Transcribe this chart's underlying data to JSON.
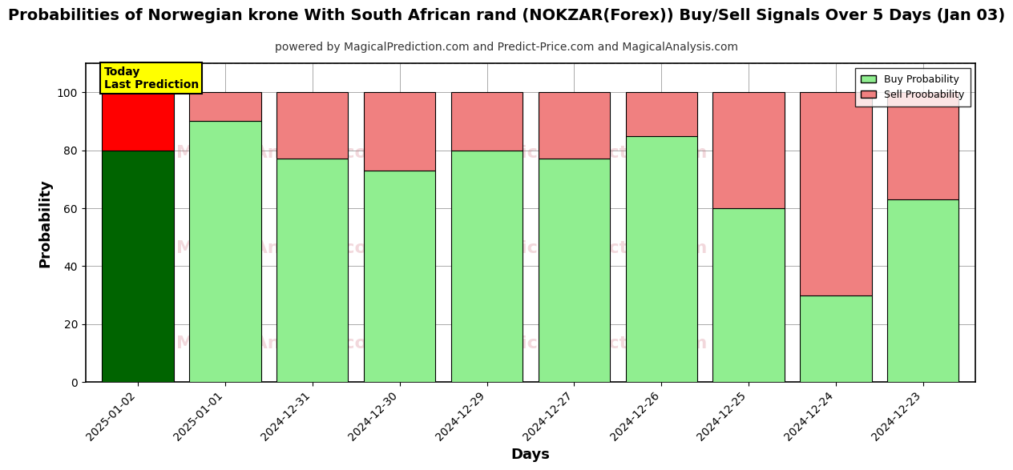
{
  "title": "Probabilities of Norwegian krone With South African rand (NOKZAR(Forex)) Buy/Sell Signals Over 5 Days (Jan 03)",
  "subtitle": "powered by MagicalPrediction.com and Predict-Price.com and MagicalAnalysis.com",
  "xlabel": "Days",
  "ylabel": "Probability",
  "categories": [
    "2025-01-02",
    "2025-01-01",
    "2024-12-31",
    "2024-12-30",
    "2024-12-29",
    "2024-12-27",
    "2024-12-26",
    "2024-12-25",
    "2024-12-24",
    "2024-12-23"
  ],
  "buy_values": [
    80,
    90,
    77,
    73,
    80,
    77,
    85,
    60,
    30,
    63
  ],
  "sell_values": [
    20,
    10,
    23,
    27,
    20,
    23,
    15,
    40,
    70,
    37
  ],
  "today_index": 0,
  "buy_color_today": "#006400",
  "sell_color_today": "#FF0000",
  "buy_color_normal": "#90EE90",
  "sell_color_normal": "#F08080",
  "bar_edge_color": "#000000",
  "ylim": [
    0,
    110
  ],
  "yticks": [
    0,
    20,
    40,
    60,
    80,
    100
  ],
  "dashed_line_y": 110,
  "legend_buy_label": "Buy Probability",
  "legend_sell_label": "Sell Proobability",
  "today_label_line1": "Today",
  "today_label_line2": "Last Prediction",
  "today_box_color": "#FFFF00",
  "title_fontsize": 14,
  "subtitle_fontsize": 10,
  "axis_label_fontsize": 13,
  "tick_fontsize": 10,
  "background_color": "#FFFFFF",
  "grid_color": "#AAAAAA",
  "bar_width": 0.82,
  "fig_width": 12,
  "fig_height": 6
}
